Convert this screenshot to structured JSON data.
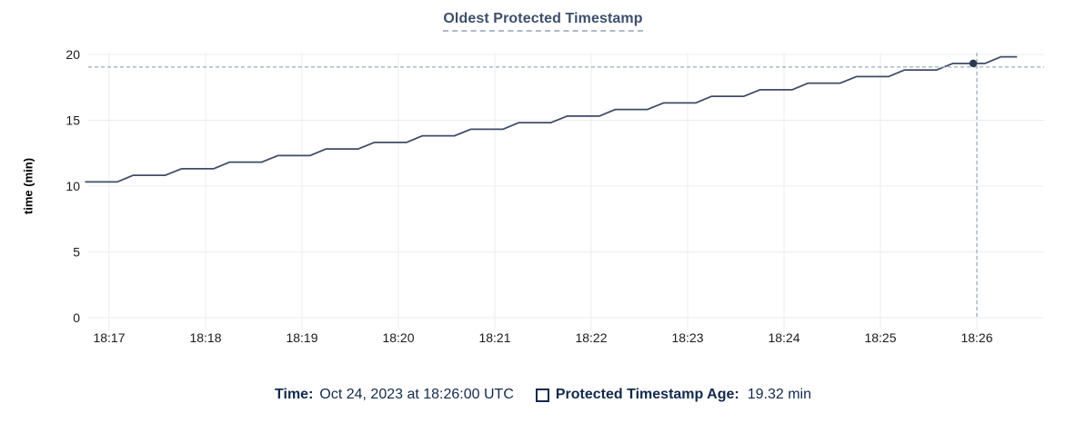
{
  "title": "Oldest Protected Timestamp",
  "colors": {
    "line": "#3e4c66",
    "dot": "#2b3a52",
    "grid": "#ededed",
    "crosshair": "#a4b3c2",
    "title": "#3d4f6b",
    "tick_text": "#1b1b1b",
    "legend_text": "#13294d"
  },
  "chart_data": {
    "type": "line",
    "title": "Oldest Protected Timestamp",
    "xlabel": "",
    "ylabel": "time (min)",
    "ylim": [
      0,
      20
    ],
    "yticks": [
      0,
      5,
      10,
      15,
      20
    ],
    "grid": true,
    "xticks": [
      {
        "seconds": 0,
        "label": "18:17"
      },
      {
        "seconds": 60,
        "label": "18:18"
      },
      {
        "seconds": 120,
        "label": "18:19"
      },
      {
        "seconds": 180,
        "label": "18:20"
      },
      {
        "seconds": 240,
        "label": "18:21"
      },
      {
        "seconds": 300,
        "label": "18:22"
      },
      {
        "seconds": 360,
        "label": "18:23"
      },
      {
        "seconds": 420,
        "label": "18:24"
      },
      {
        "seconds": 480,
        "label": "18:25"
      },
      {
        "seconds": 540,
        "label": "18:26"
      }
    ],
    "series": [
      {
        "name": "Protected Timestamp Age",
        "unit": "min",
        "points": [
          [
            -15,
            10.32
          ],
          [
            5,
            10.32
          ],
          [
            15,
            10.82
          ],
          [
            35,
            10.82
          ],
          [
            45,
            11.32
          ],
          [
            65,
            11.32
          ],
          [
            75,
            11.82
          ],
          [
            95,
            11.82
          ],
          [
            105,
            12.32
          ],
          [
            125,
            12.32
          ],
          [
            135,
            12.82
          ],
          [
            155,
            12.82
          ],
          [
            165,
            13.32
          ],
          [
            185,
            13.32
          ],
          [
            195,
            13.82
          ],
          [
            215,
            13.82
          ],
          [
            225,
            14.32
          ],
          [
            245,
            14.32
          ],
          [
            255,
            14.82
          ],
          [
            275,
            14.82
          ],
          [
            285,
            15.32
          ],
          [
            305,
            15.32
          ],
          [
            315,
            15.82
          ],
          [
            335,
            15.82
          ],
          [
            345,
            16.32
          ],
          [
            365,
            16.32
          ],
          [
            375,
            16.82
          ],
          [
            395,
            16.82
          ],
          [
            405,
            17.32
          ],
          [
            425,
            17.32
          ],
          [
            435,
            17.82
          ],
          [
            455,
            17.82
          ],
          [
            465,
            18.32
          ],
          [
            485,
            18.32
          ],
          [
            495,
            18.82
          ],
          [
            515,
            18.82
          ],
          [
            525,
            19.32
          ],
          [
            545,
            19.32
          ],
          [
            555,
            19.82
          ],
          [
            565,
            19.82
          ]
        ]
      }
    ],
    "crosshair": {
      "x_tick_label": "18:26",
      "seconds": 540,
      "value": 19.32
    }
  },
  "legend": {
    "time_label": "Time:",
    "time_value": "Oct 24, 2023 at 18:26:00 UTC",
    "series_label": "Protected Timestamp Age:",
    "series_value": "19.32 min"
  }
}
